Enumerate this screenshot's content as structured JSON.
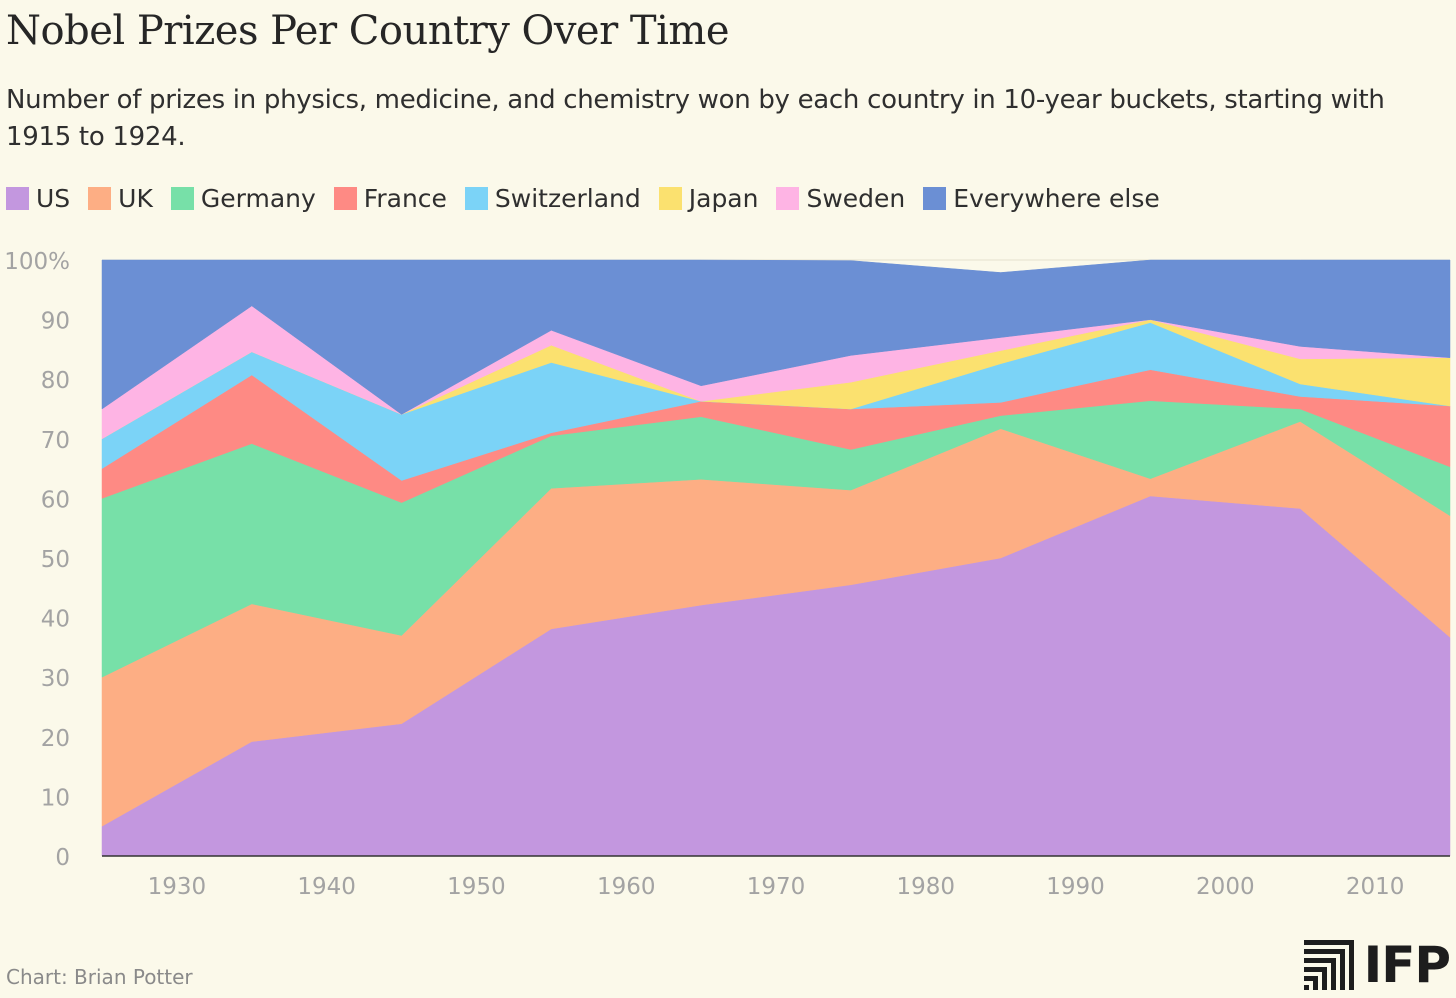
{
  "title": "Nobel Prizes Per Country Over Time",
  "subtitle": "Number of prizes in physics, medicine, and chemistry won by each country in 10-year buckets, starting with 1915 to 1924.",
  "footer": "Chart: Brian Potter",
  "logo_text": "IFP",
  "chart_data": {
    "type": "area",
    "stacked": true,
    "x": [
      1925,
      1935,
      1945,
      1955,
      1965,
      1975,
      1985,
      1995,
      2005,
      2015
    ],
    "xlim": [
      1925,
      2015
    ],
    "xticks": [
      1930,
      1940,
      1950,
      1960,
      1970,
      1980,
      1990,
      2000,
      2010
    ],
    "ylim": [
      0,
      100
    ],
    "yticks": [
      0,
      10,
      20,
      30,
      40,
      50,
      60,
      70,
      80,
      90,
      100
    ],
    "ytick_labels": [
      "0",
      "10",
      "20",
      "30",
      "40",
      "50",
      "60",
      "70",
      "80",
      "90",
      "100%"
    ],
    "grid": true,
    "legend_position": "top-left",
    "series": [
      {
        "name": "US",
        "color": "#c397df",
        "values": [
          5,
          19.2,
          22.2,
          38.1,
          42.1,
          45.5,
          50,
          60.4,
          58.3,
          36.7
        ]
      },
      {
        "name": "UK",
        "color": "#fdae84",
        "values": [
          25,
          23.1,
          14.8,
          23.6,
          21.1,
          15.9,
          21.7,
          2.9,
          14.6,
          20.4
        ]
      },
      {
        "name": "Germany",
        "color": "#77e0a8",
        "values": [
          30,
          26.9,
          22.3,
          8.8,
          10.5,
          6.8,
          2.2,
          13.1,
          2.1,
          8.2
        ]
      },
      {
        "name": "France",
        "color": "#fe8a84",
        "values": [
          5,
          11.5,
          3.7,
          0.5,
          2.6,
          6.8,
          2.2,
          5.2,
          2.1,
          10.2
        ]
      },
      {
        "name": "Switzerland",
        "color": "#7bd3f7",
        "values": [
          5,
          3.9,
          11.1,
          11.8,
          0,
          0,
          6.5,
          7.9,
          2.1,
          0
        ]
      },
      {
        "name": "Japan",
        "color": "#fbe16f",
        "values": [
          0,
          0,
          0,
          2.9,
          0,
          4.5,
          2.2,
          0.5,
          4.2,
          8.1
        ]
      },
      {
        "name": "Sweden",
        "color": "#feb4e4",
        "values": [
          5,
          7.7,
          0,
          2.5,
          2.6,
          4.5,
          2.2,
          0,
          2.1,
          0
        ]
      },
      {
        "name": "Everywhere else",
        "color": "#6b8fd4",
        "values": [
          25,
          7.7,
          25.9,
          11.8,
          21.1,
          15.9,
          10.9,
          10.5,
          14.6,
          16.4
        ]
      }
    ]
  }
}
